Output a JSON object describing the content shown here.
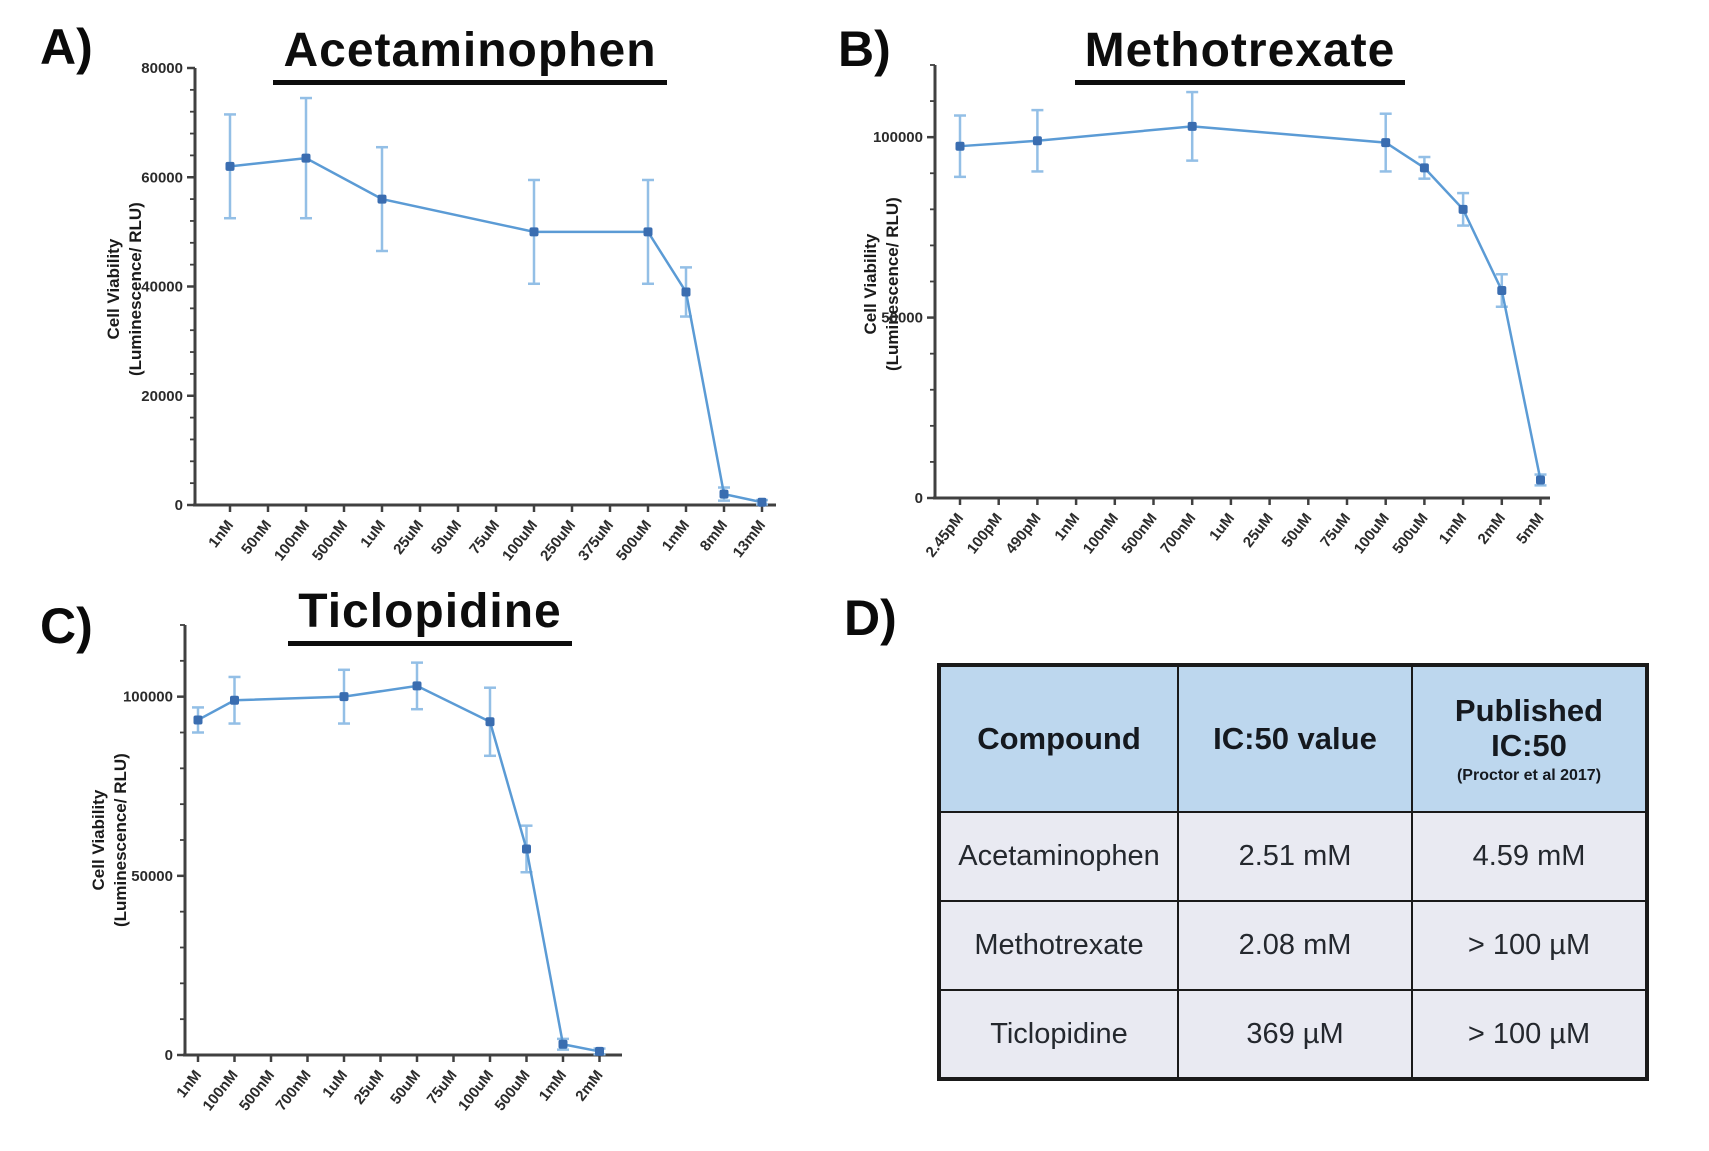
{
  "colors": {
    "line": "#5b9bd5",
    "marker": "#3a6db0",
    "error_bar": "#93bfe6",
    "axis": "#404040",
    "title": "#0d0d0d",
    "table_header_bg": "#bdd7ee",
    "table_row_bg": "#e9eaf2",
    "table_border": "#1a1a1a"
  },
  "panels": {
    "A": {
      "letter": "A)"
    },
    "B": {
      "letter": "B)"
    },
    "C": {
      "letter": "C)"
    },
    "D": {
      "letter": "D)"
    }
  },
  "chart_data": [
    {
      "type": "line",
      "panel": "A",
      "title": "Acetaminophen",
      "ylabel_line1": "Cell Viability",
      "ylabel_line2": "(Luminescence/ RLU)",
      "categories": [
        "1nM",
        "50nM",
        "100nM",
        "500nM",
        "1uM",
        "25uM",
        "50uM",
        "75uM",
        "100uM",
        "250uM",
        "375uM",
        "500uM",
        "1mM",
        "8mM",
        "13mM"
      ],
      "yticks": [
        0,
        20000,
        40000,
        60000,
        80000
      ],
      "ylim": [
        0,
        80000
      ],
      "grid": false,
      "legend": "none",
      "series": [
        {
          "name": "Acetaminophen cell viability",
          "points": [
            {
              "category": "1nM",
              "y": 62000,
              "err": 9500
            },
            {
              "category": "100nM",
              "y": 63500,
              "err": 11000
            },
            {
              "category": "1uM",
              "y": 56000,
              "err": 9500
            },
            {
              "category": "100uM",
              "y": 50000,
              "err": 9500
            },
            {
              "category": "500uM",
              "y": 50000,
              "err": 9500
            },
            {
              "category": "1mM",
              "y": 39000,
              "err": 4500
            },
            {
              "category": "8mM",
              "y": 2000,
              "err": 1200
            },
            {
              "category": "13mM",
              "y": 500,
              "err": 400
            }
          ]
        }
      ]
    },
    {
      "type": "line",
      "panel": "B",
      "title": "Methotrexate",
      "ylabel_line1": "Cell Viability",
      "ylabel_line2": "(Luminescence/ RLU)",
      "categories": [
        "2.45pM",
        "100pM",
        "490pM",
        "1nM",
        "100nM",
        "500nM",
        "700nM",
        "1uM",
        "25uM",
        "50uM",
        "75uM",
        "100uM",
        "500uM",
        "1mM",
        "2mM",
        "5mM"
      ],
      "yticks": [
        0,
        50000,
        100000
      ],
      "ylim": [
        0,
        120000
      ],
      "grid": false,
      "legend": "none",
      "series": [
        {
          "name": "Methotrexate cell viability",
          "points": [
            {
              "category": "2.45pM",
              "y": 97500,
              "err": 8500
            },
            {
              "category": "490pM",
              "y": 99000,
              "err": 8500
            },
            {
              "category": "700nM",
              "y": 103000,
              "err": 9500
            },
            {
              "category": "100uM",
              "y": 98500,
              "err": 8000
            },
            {
              "category": "500uM",
              "y": 91500,
              "err": 3000
            },
            {
              "category": "1mM",
              "y": 80000,
              "err": 4500
            },
            {
              "category": "2mM",
              "y": 57500,
              "err": 4500
            },
            {
              "category": "5mM",
              "y": 5000,
              "err": 1500
            }
          ]
        }
      ]
    },
    {
      "type": "line",
      "panel": "C",
      "title": "Ticlopidine",
      "ylabel_line1": "Cell Viability",
      "ylabel_line2": "(Luminescence/ RLU)",
      "categories": [
        "1nM",
        "100nM",
        "500nM",
        "700nM",
        "1uM",
        "25uM",
        "50uM",
        "75uM",
        "100uM",
        "500uM",
        "1mM",
        "2mM"
      ],
      "yticks": [
        0,
        50000,
        100000
      ],
      "ylim": [
        0,
        120000
      ],
      "grid": false,
      "legend": "none",
      "series": [
        {
          "name": "Ticlopidine cell viability",
          "points": [
            {
              "category": "1nM",
              "y": 93500,
              "err": 3500
            },
            {
              "category": "100nM",
              "y": 99000,
              "err": 6500
            },
            {
              "category": "1uM",
              "y": 100000,
              "err": 7500
            },
            {
              "category": "50uM",
              "y": 103000,
              "err": 6500
            },
            {
              "category": "100uM",
              "y": 93000,
              "err": 9500
            },
            {
              "category": "500uM",
              "y": 57500,
              "err": 6500
            },
            {
              "category": "1mM",
              "y": 3000,
              "err": 1500
            },
            {
              "category": "2mM",
              "y": 1000,
              "err": 800
            }
          ]
        }
      ]
    },
    {
      "type": "table",
      "panel": "D",
      "headers": {
        "col1": "Compound",
        "col2": "IC:50 value",
        "col3_line1": "Published",
        "col3_line2": "IC:50",
        "col3_note": "(Proctor et al 2017)"
      },
      "rows": [
        {
          "compound": "Acetaminophen",
          "ic50": "2.51 mM",
          "published_ic50": "4.59 mM"
        },
        {
          "compound": "Methotrexate",
          "ic50": "2.08 mM",
          "published_ic50": "> 100 µM"
        },
        {
          "compound": "Ticlopidine",
          "ic50": "369 µM",
          "published_ic50": "> 100 µM"
        }
      ]
    }
  ]
}
